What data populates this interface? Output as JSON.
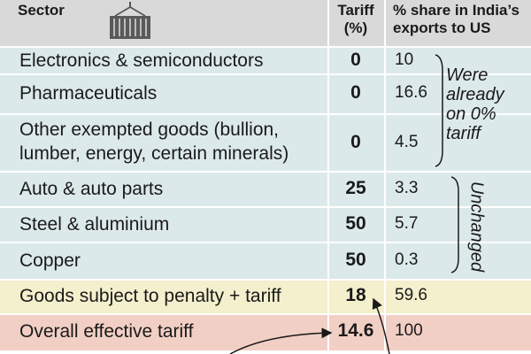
{
  "headers": {
    "sector": "Sector",
    "tariff_line1": "Tariff",
    "tariff_line2": "(%)",
    "share_line1": "% share in India’s",
    "share_line2": "exports to US"
  },
  "rows": [
    {
      "sector_line1": "Electronics & semiconductors",
      "sector_line2": "",
      "tariff": "0",
      "share": "10"
    },
    {
      "sector_line1": "Pharmaceuticals",
      "sector_line2": "",
      "tariff": "0",
      "share": "16.6"
    },
    {
      "sector_line1": "Other exempted goods (bullion,",
      "sector_line2": "lumber, energy, certain minerals)",
      "tariff": "0",
      "share": "4.5"
    },
    {
      "sector_line1": "Auto & auto parts",
      "sector_line2": "",
      "tariff": "25",
      "share": "3.3"
    },
    {
      "sector_line1": "Steel & aluminium",
      "sector_line2": "",
      "tariff": "50",
      "share": "5.7"
    },
    {
      "sector_line1": "Copper",
      "sector_line2": "",
      "tariff": "50",
      "share": "0.3"
    },
    {
      "sector_line1": "Goods subject to penalty + tariff",
      "sector_line2": "",
      "tariff": "18",
      "share": "59.6"
    },
    {
      "sector_line1": "Overall effective tariff",
      "sector_line2": "",
      "tariff": "14.6",
      "share": "100"
    }
  ],
  "notes": {
    "already_line1": "Were",
    "already_line2": "already",
    "already_line3": "on 0%",
    "already_line4": "tariff",
    "unchanged": "Unchanged"
  },
  "colors": {
    "header": "#d9d9d9",
    "default_row": "#dce9ea",
    "penalty_row": "#f4efcc",
    "overall_row": "#f2cfc4"
  },
  "icons": [
    "shipping-container-icon",
    "bracket-line",
    "arrow-icon"
  ]
}
